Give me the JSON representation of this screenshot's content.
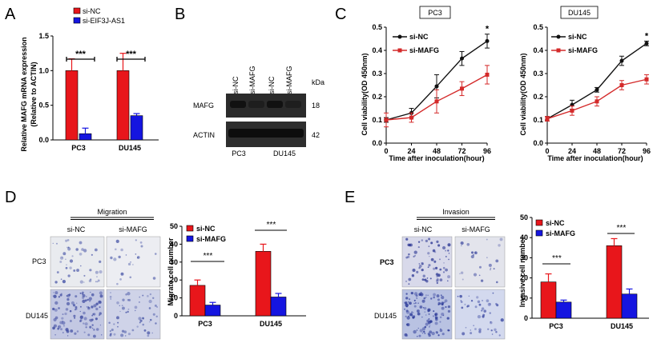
{
  "panels": {
    "A": {
      "label": "A",
      "legend": [
        "si-NC",
        "si-EIF3J-AS1"
      ],
      "ylabel_line1": "Relative MAFG mRNA expression",
      "ylabel_line2": "(Relative to ACTIN)",
      "yticks": [
        "0.0",
        "0.5",
        "1.0",
        "1.5"
      ],
      "categories": [
        "PC3",
        "DU145"
      ],
      "sig": [
        "***",
        "***"
      ]
    },
    "B": {
      "label": "B",
      "lane_labels": [
        "si-NC",
        "si-MAFG",
        "si-NC",
        "si-MAFG"
      ],
      "kda_label": "kDa",
      "bands": [
        {
          "name": "MAFG",
          "kda": "18"
        },
        {
          "name": "ACTIN",
          "kda": "42"
        }
      ],
      "cell_lines": [
        "PC3",
        "DU145"
      ]
    },
    "C": {
      "label": "C",
      "titles": [
        "PC3",
        "DU145"
      ],
      "legend": [
        "si-NC",
        "si-MAFG"
      ],
      "ylabel": "Cell viability(OD 450nm)",
      "xlabel": "Time after inoculation(hour)",
      "xticks": [
        "0",
        "24",
        "48",
        "72",
        "96"
      ],
      "yticks": [
        "0.0",
        "0.1",
        "0.2",
        "0.3",
        "0.4",
        "0.5"
      ],
      "sig": [
        "*",
        "*"
      ]
    },
    "D": {
      "label": "D",
      "header": "Migration",
      "columns": [
        "si-NC",
        "si-MAFG"
      ],
      "rows": [
        "PC3",
        "DU145"
      ],
      "legend": [
        "si-NC",
        "si-MAFG"
      ],
      "ylabel": "Migrate cell number",
      "yticks": [
        "0",
        "10",
        "20",
        "30",
        "40",
        "50"
      ],
      "categories": [
        "PC3",
        "DU145"
      ],
      "sig": [
        "***",
        "***"
      ]
    },
    "E": {
      "label": "E",
      "header": "Invasion",
      "columns": [
        "si-NC",
        "si-MAFG"
      ],
      "rows": [
        "PC3",
        "DU145"
      ],
      "legend": [
        "si-NC",
        "si-MAFG"
      ],
      "ylabel": "Invasive cell number",
      "yticks": [
        "0",
        "10",
        "20",
        "30",
        "40",
        "50"
      ],
      "categories": [
        "PC3",
        "DU145"
      ],
      "sig": [
        "***",
        "***"
      ]
    }
  },
  "colors": {
    "red": "#e8161b",
    "blue": "#1515e0",
    "black": "#111111",
    "cred": "#d42a2a"
  },
  "chart_data": [
    {
      "type": "bar",
      "panel": "A",
      "categories": [
        "PC3",
        "DU145"
      ],
      "series": [
        {
          "name": "si-NC",
          "values": [
            1.0,
            1.0
          ],
          "errors": [
            0.17,
            0.25
          ]
        },
        {
          "name": "si-EIF3J-AS1",
          "values": [
            0.09,
            0.35
          ],
          "errors": [
            0.08,
            0.03
          ]
        }
      ],
      "ylim": [
        0,
        1.5
      ]
    },
    {
      "type": "line",
      "panel": "C-PC3",
      "title": "PC3",
      "x": [
        0,
        24,
        48,
        72,
        96
      ],
      "series": [
        {
          "name": "si-NC",
          "values": [
            0.1,
            0.13,
            0.245,
            0.365,
            0.44
          ],
          "errors": [
            0.01,
            0.02,
            0.05,
            0.03,
            0.03
          ]
        },
        {
          "name": "si-MAFG",
          "values": [
            0.1,
            0.11,
            0.18,
            0.235,
            0.295
          ],
          "errors": [
            0.03,
            0.02,
            0.05,
            0.03,
            0.04
          ]
        }
      ],
      "xlim": [
        0,
        96
      ],
      "ylim": [
        0,
        0.5
      ]
    },
    {
      "type": "line",
      "panel": "C-DU145",
      "title": "DU145",
      "x": [
        0,
        24,
        48,
        72,
        96
      ],
      "series": [
        {
          "name": "si-NC",
          "values": [
            0.105,
            0.165,
            0.23,
            0.355,
            0.43
          ],
          "errors": [
            0.01,
            0.02,
            0.01,
            0.02,
            0.01
          ]
        },
        {
          "name": "si-MAFG",
          "values": [
            0.105,
            0.14,
            0.18,
            0.25,
            0.275
          ],
          "errors": [
            0.01,
            0.02,
            0.02,
            0.02,
            0.02
          ]
        }
      ],
      "xlim": [
        0,
        96
      ],
      "ylim": [
        0,
        0.5
      ]
    },
    {
      "type": "bar",
      "panel": "D",
      "categories": [
        "PC3",
        "DU145"
      ],
      "series": [
        {
          "name": "si-NC",
          "values": [
            17,
            36
          ],
          "errors": [
            3,
            4
          ]
        },
        {
          "name": "si-MAFG",
          "values": [
            6,
            10.5
          ],
          "errors": [
            1.5,
            2
          ]
        }
      ],
      "ylim": [
        0,
        50
      ]
    },
    {
      "type": "bar",
      "panel": "E",
      "categories": [
        "PC3",
        "DU145"
      ],
      "series": [
        {
          "name": "si-NC",
          "values": [
            18,
            36
          ],
          "errors": [
            4,
            3.5
          ]
        },
        {
          "name": "si-MAFG",
          "values": [
            8,
            12
          ],
          "errors": [
            1,
            2.5
          ]
        }
      ],
      "ylim": [
        0,
        50
      ]
    }
  ]
}
